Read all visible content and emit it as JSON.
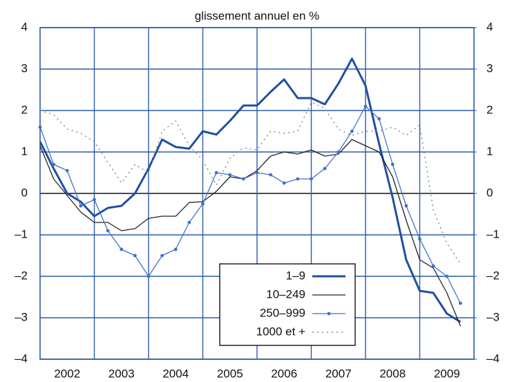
{
  "chart_data": {
    "type": "line",
    "title": "glissement annuel en %",
    "x": [
      2002,
      2002.25,
      2002.5,
      2002.75,
      2003,
      2003.25,
      2003.5,
      2003.75,
      2004,
      2004.25,
      2004.5,
      2004.75,
      2005,
      2005.25,
      2005.5,
      2005.75,
      2006,
      2006.25,
      2006.5,
      2006.75,
      2007,
      2007.25,
      2007.5,
      2007.75,
      2008,
      2008.25,
      2008.5,
      2008.75,
      2009,
      2009.25,
      2009.5,
      2009.75
    ],
    "xlim": [
      2002,
      2010
    ],
    "xticks": [
      {
        "value": 2002.5,
        "label": "2002"
      },
      {
        "value": 2003.5,
        "label": "2003"
      },
      {
        "value": 2004.5,
        "label": "2004"
      },
      {
        "value": 2005.5,
        "label": "2005"
      },
      {
        "value": 2006.5,
        "label": "2006"
      },
      {
        "value": 2007.5,
        "label": "2007"
      },
      {
        "value": 2008.5,
        "label": "2008"
      },
      {
        "value": 2009.5,
        "label": "2009"
      }
    ],
    "xgrid": [
      2003,
      2004,
      2005,
      2006,
      2007,
      2008,
      2009
    ],
    "ylim": [
      -4,
      4
    ],
    "yticks": [
      {
        "value": -4,
        "label": "–4"
      },
      {
        "value": -3,
        "label": "–3"
      },
      {
        "value": -2,
        "label": "–2"
      },
      {
        "value": -1,
        "label": "–1"
      },
      0,
      1,
      2,
      3,
      4
    ],
    "y2lim": [
      -4,
      4
    ],
    "y2ticks": [
      {
        "value": -4,
        "label": "–4"
      },
      {
        "value": -3,
        "label": "–3"
      },
      {
        "value": -2,
        "label": "–2"
      },
      {
        "value": -1,
        "label": "–1"
      },
      0,
      1,
      2,
      3,
      4
    ],
    "grid": true,
    "grid_color": "#2c5aa8",
    "legend": "lower center",
    "series": [
      {
        "name": "1–9",
        "color": "#1f4fa0",
        "width": 3,
        "style": "solid",
        "markers": false,
        "values": [
          1.25,
          0.6,
          0.0,
          -0.2,
          -0.55,
          -0.35,
          -0.3,
          0.0,
          0.6,
          1.3,
          1.12,
          1.08,
          1.5,
          1.42,
          1.75,
          2.12,
          2.12,
          2.45,
          2.75,
          2.3,
          2.3,
          2.15,
          2.65,
          3.25,
          2.6,
          1.2,
          -0.1,
          -1.6,
          -2.35,
          -2.4,
          -2.9,
          -3.1
        ]
      },
      {
        "name": "10–249",
        "color": "#222222",
        "width": 1.3,
        "style": "solid",
        "markers": false,
        "values": [
          1.15,
          0.35,
          -0.05,
          -0.45,
          -0.7,
          -0.7,
          -0.9,
          -0.85,
          -0.6,
          -0.55,
          -0.55,
          -0.22,
          -0.2,
          0.05,
          0.4,
          0.35,
          0.55,
          0.9,
          1.0,
          0.95,
          1.05,
          0.9,
          0.95,
          1.3,
          1.15,
          1.0,
          0.4,
          -0.65,
          -1.6,
          -1.8,
          -2.4,
          -3.2
        ]
      },
      {
        "name": "250–999",
        "color": "#3e72c8",
        "width": 1.3,
        "style": "solid",
        "markers": true,
        "values": [
          1.6,
          0.7,
          0.55,
          -0.3,
          -0.15,
          -0.9,
          -1.35,
          -1.5,
          -2.0,
          -1.5,
          -1.35,
          -0.7,
          -0.25,
          0.5,
          0.45,
          0.35,
          0.5,
          0.45,
          0.25,
          0.35,
          0.35,
          0.6,
          1.0,
          1.5,
          2.1,
          1.8,
          0.7,
          -0.3,
          -1.1,
          -1.75,
          -2.0,
          -2.65
        ]
      },
      {
        "name": "1000 et +",
        "color": "#888888",
        "width": 1.5,
        "style": "dotted",
        "markers": false,
        "values": [
          2.0,
          1.9,
          1.55,
          1.45,
          1.25,
          0.75,
          0.25,
          0.7,
          0.5,
          1.5,
          1.75,
          1.15,
          0.8,
          0.2,
          0.85,
          1.1,
          1.05,
          1.5,
          1.45,
          1.5,
          2.2,
          2.05,
          1.55,
          1.4,
          1.5,
          1.5,
          1.6,
          1.4,
          1.65,
          -0.4,
          -1.2,
          -1.7
        ]
      }
    ]
  }
}
